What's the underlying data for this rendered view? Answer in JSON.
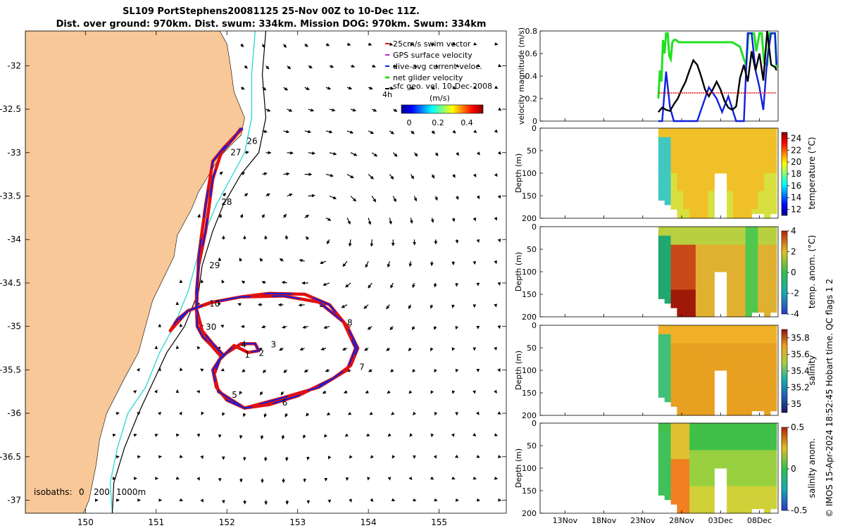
{
  "title_line1": "SL109 PortStephens20081125 25-Nov 00Z to 10-Dec 11Z.",
  "title_line2": "Dist. over ground: 970km. Dist. swum: 334km. Mission DOG: 970km. Swum: 334km",
  "copyright": "© IMOS 15-Apr-2024 18:52:45 Hobart time. QC flags 1  2",
  "colors": {
    "land": "#f9c898",
    "track_red": "#e01010",
    "track_blue": "#1020e0",
    "isobath_200": "#35d8d8",
    "isobath_1000": "#000000",
    "green": "#20e020"
  },
  "chart_data": [
    {
      "type": "map",
      "name": "glider track map",
      "xlim": [
        149.15,
        155.95
      ],
      "ylim": [
        -37.15,
        -31.6
      ],
      "xticks": [
        150,
        151,
        152,
        153,
        154,
        155
      ],
      "xtick_labels": [
        "150",
        "151",
        "152",
        "153",
        "154",
        "155"
      ],
      "yticks": [
        -32,
        -32.5,
        -33,
        -33.5,
        -34,
        -34.5,
        -35,
        -35.5,
        -36,
        -36.5,
        -37
      ],
      "ytick_labels": [
        "-32",
        "-32.5",
        "-33",
        "-33.5",
        "-34",
        "-34.5",
        "-35",
        "-35.5",
        "-36",
        "-36.5",
        "-37"
      ],
      "legend": [
        "25cm/s swim vector",
        "GPS surface velocity",
        "dive-avg current veloc.",
        "net glider velocity",
        "sfc geo. vel. 10-Dec-2008"
      ],
      "colorbar": {
        "label": "(m/s)",
        "ticks": [
          "0",
          "0.2",
          "0.4"
        ],
        "range": [
          0,
          0.5
        ]
      },
      "isobath_label": "isobaths:",
      "isobath_levels": [
        "0",
        "200",
        "1000m"
      ],
      "coastline": [
        [
          150.4,
          -31.6
        ],
        [
          150.9,
          -31.6
        ],
        [
          151.9,
          -31.6
        ],
        [
          152.0,
          -31.75
        ],
        [
          152.05,
          -32.0
        ],
        [
          152.1,
          -32.3
        ],
        [
          152.25,
          -32.6
        ],
        [
          152.2,
          -32.8
        ],
        [
          152.05,
          -32.92
        ],
        [
          151.9,
          -33.05
        ],
        [
          151.75,
          -33.25
        ],
        [
          151.6,
          -33.45
        ],
        [
          151.5,
          -33.65
        ],
        [
          151.3,
          -33.95
        ],
        [
          151.25,
          -34.2
        ],
        [
          151.1,
          -34.45
        ],
        [
          150.95,
          -34.7
        ],
        [
          150.85,
          -35.0
        ],
        [
          150.75,
          -35.3
        ],
        [
          150.55,
          -35.6
        ],
        [
          150.3,
          -36.0
        ],
        [
          150.2,
          -36.3
        ],
        [
          150.15,
          -36.6
        ],
        [
          150.05,
          -37.0
        ],
        [
          149.97,
          -37.15
        ]
      ],
      "isobath_200m": [
        [
          152.4,
          -31.6
        ],
        [
          152.35,
          -32.1
        ],
        [
          152.35,
          -32.6
        ],
        [
          152.25,
          -33.0
        ],
        [
          152.05,
          -33.3
        ],
        [
          151.85,
          -33.6
        ],
        [
          151.7,
          -33.9
        ],
        [
          151.55,
          -34.3
        ],
        [
          151.45,
          -34.6
        ],
        [
          151.25,
          -35.0
        ],
        [
          151.05,
          -35.3
        ],
        [
          150.85,
          -35.7
        ],
        [
          150.6,
          -36.0
        ],
        [
          150.45,
          -36.4
        ],
        [
          150.35,
          -36.8
        ],
        [
          150.38,
          -37.15
        ]
      ],
      "isobath_1000m": [
        [
          152.55,
          -31.6
        ],
        [
          152.5,
          -32.1
        ],
        [
          152.55,
          -32.6
        ],
        [
          152.45,
          -33.0
        ],
        [
          152.2,
          -33.25
        ],
        [
          151.95,
          -33.6
        ],
        [
          151.8,
          -33.9
        ],
        [
          151.65,
          -34.3
        ],
        [
          151.6,
          -34.6
        ],
        [
          151.4,
          -35.0
        ],
        [
          151.15,
          -35.3
        ],
        [
          150.95,
          -35.65
        ],
        [
          150.75,
          -36.0
        ],
        [
          150.55,
          -36.4
        ],
        [
          150.4,
          -36.8
        ],
        [
          150.38,
          -37.15
        ]
      ],
      "track": [
        [
          152.2,
          -32.72
        ],
        [
          152.1,
          -32.83
        ],
        [
          151.92,
          -33.0
        ],
        [
          151.8,
          -33.3
        ],
        [
          151.7,
          -33.9
        ],
        [
          151.6,
          -34.3
        ],
        [
          151.57,
          -34.6
        ],
        [
          151.57,
          -34.8
        ],
        [
          151.58,
          -35.0
        ],
        [
          151.66,
          -35.12
        ],
        [
          151.78,
          -35.22
        ],
        [
          151.92,
          -35.35
        ],
        [
          151.8,
          -35.5
        ],
        [
          151.85,
          -35.7
        ],
        [
          152.0,
          -35.85
        ],
        [
          152.25,
          -35.94
        ],
        [
          152.6,
          -35.9
        ],
        [
          153.0,
          -35.8
        ],
        [
          153.5,
          -35.6
        ],
        [
          153.75,
          -35.45
        ],
        [
          153.85,
          -35.25
        ],
        [
          153.7,
          -35.0
        ],
        [
          153.45,
          -34.75
        ],
        [
          153.1,
          -34.63
        ],
        [
          152.6,
          -34.62
        ],
        [
          152.2,
          -34.66
        ],
        [
          151.8,
          -34.72
        ],
        [
          151.45,
          -34.82
        ],
        [
          151.3,
          -34.92
        ],
        [
          151.2,
          -35.05
        ],
        [
          151.2,
          -35.05
        ],
        [
          151.45,
          -34.82
        ],
        [
          151.75,
          -34.73
        ],
        [
          152.2,
          -34.66
        ],
        [
          152.8,
          -34.65
        ],
        [
          153.3,
          -34.72
        ],
        [
          153.65,
          -34.95
        ],
        [
          153.82,
          -35.25
        ],
        [
          153.7,
          -35.5
        ],
        [
          153.3,
          -35.7
        ],
        [
          152.8,
          -35.82
        ],
        [
          152.25,
          -35.94
        ],
        [
          151.88,
          -35.75
        ],
        [
          151.82,
          -35.55
        ],
        [
          151.9,
          -35.38
        ],
        [
          152.1,
          -35.22
        ],
        [
          152.3,
          -35.3
        ],
        [
          152.45,
          -35.28
        ],
        [
          152.4,
          -35.2
        ],
        [
          152.2,
          -35.2
        ],
        [
          151.95,
          -35.33
        ],
        [
          151.8,
          -35.2
        ],
        [
          151.65,
          -35.05
        ],
        [
          151.57,
          -34.8
        ],
        [
          151.6,
          -34.2
        ],
        [
          151.7,
          -33.6
        ],
        [
          151.8,
          -33.1
        ],
        [
          151.95,
          -32.95
        ],
        [
          152.1,
          -32.82
        ],
        [
          152.22,
          -32.72
        ]
      ],
      "day_labels": [
        {
          "text": "26",
          "lon": 152.28,
          "lat": -32.9
        },
        {
          "text": "27",
          "lon": 152.05,
          "lat": -33.03
        },
        {
          "text": "28",
          "lon": 151.92,
          "lat": -33.6
        },
        {
          "text": "29",
          "lon": 151.75,
          "lat": -34.33
        },
        {
          "text": "10",
          "lon": 151.75,
          "lat": -34.77
        },
        {
          "text": "30",
          "lon": 151.7,
          "lat": -35.04
        },
        {
          "text": "8",
          "lon": 153.7,
          "lat": -34.99
        },
        {
          "text": "7",
          "lon": 153.87,
          "lat": -35.5
        },
        {
          "text": "6",
          "lon": 152.78,
          "lat": -35.91
        },
        {
          "text": "5",
          "lon": 152.07,
          "lat": -35.82
        },
        {
          "text": "4",
          "lon": 152.2,
          "lat": -35.24
        },
        {
          "text": "3",
          "lon": 152.62,
          "lat": -35.24
        },
        {
          "text": "2",
          "lon": 152.45,
          "lat": -35.34
        },
        {
          "text": "1",
          "lon": 152.25,
          "lat": -35.36
        }
      ]
    },
    {
      "type": "line",
      "name": "velocity magnitude",
      "ylabel": "velocity magnitude (m/s)",
      "ylim": [
        0,
        0.8
      ],
      "yticks": [
        0,
        0.2,
        0.4,
        0.6,
        0.8
      ],
      "ytick_labels": [
        "0",
        "0.2",
        "0.4",
        "0.6",
        "0.8"
      ],
      "xlim": [
        9.8,
        40.4
      ],
      "series": [
        {
          "name": "net glider velocity",
          "color": "#20e020",
          "x": [
            25.0,
            25.2,
            25.4,
            25.6,
            25.8,
            26.0,
            26.2,
            26.4,
            26.6,
            26.8,
            27.0,
            27.3,
            27.6,
            28.0,
            29,
            30,
            31,
            32,
            33,
            34,
            34.5,
            35,
            35.5,
            36,
            36.3,
            36.6,
            37,
            37.3,
            37.6,
            38,
            38.3,
            38.6,
            39,
            39.3,
            39.6,
            40,
            40.2
          ],
          "y": [
            0.2,
            0.45,
            0.35,
            0.72,
            0.6,
            0.78,
            0.78,
            0.58,
            0.55,
            0.7,
            0.72,
            0.72,
            0.7,
            0.7,
            0.7,
            0.7,
            0.7,
            0.7,
            0.7,
            0.7,
            0.7,
            0.68,
            0.66,
            0.55,
            0.5,
            0.78,
            0.78,
            0.78,
            0.62,
            0.78,
            0.78,
            0.52,
            0.5,
            0.78,
            0.78,
            0.78,
            0.47
          ]
        },
        {
          "name": "dive-avg current veloc.",
          "color": "#1020e0",
          "x": [
            25.0,
            25.5,
            26.0,
            26.5,
            27.0,
            28.5,
            30.0,
            31.5,
            32.5,
            33.2,
            34.0,
            35.0,
            35.7,
            36.0,
            36.5,
            37.0,
            37.5,
            38.0,
            38.5,
            39.0,
            39.5,
            40.0,
            40.2
          ],
          "y": [
            0.0,
            0.0,
            0.44,
            0.12,
            0.0,
            0.0,
            0.0,
            0.3,
            0.2,
            0.08,
            0.22,
            0.0,
            0.0,
            0.0,
            0.78,
            0.78,
            0.45,
            0.3,
            0.1,
            0.55,
            0.78,
            0.78,
            0.5
          ]
        },
        {
          "name": "sfc geo. vel.",
          "color": "#000000",
          "x": [
            25.0,
            25.5,
            26.0,
            26.5,
            27.0,
            27.5,
            28.0,
            28.5,
            29,
            29.5,
            30,
            30.5,
            31,
            31.5,
            32,
            32.5,
            33,
            33.5,
            34,
            34.5,
            35,
            35.5,
            36,
            36.5,
            37,
            37.5,
            38,
            38.5,
            39,
            39.5,
            40,
            40.2
          ],
          "y": [
            0.08,
            0.12,
            0.1,
            0.09,
            0.15,
            0.2,
            0.28,
            0.35,
            0.45,
            0.54,
            0.5,
            0.4,
            0.28,
            0.22,
            0.28,
            0.35,
            0.28,
            0.18,
            0.12,
            0.1,
            0.13,
            0.38,
            0.5,
            0.35,
            0.62,
            0.45,
            0.6,
            0.36,
            0.8,
            0.5,
            0.48,
            0.45
          ]
        },
        {
          "name": "25cm/s swim vector",
          "color": "#e01010",
          "x": [
            25.0,
            40.2
          ],
          "y": [
            0.25,
            0.25
          ]
        }
      ]
    },
    {
      "type": "heatmap",
      "name": "temperature section",
      "ylabel": "Depth (m)",
      "cbar_label": "temperature (°C)",
      "ylim": [
        0,
        200
      ],
      "yticks": [
        0,
        50,
        100,
        150,
        200
      ],
      "ytick_labels": [
        "0",
        "50",
        "100",
        "150",
        "200"
      ],
      "cbar_range": [
        11,
        25
      ],
      "cbar_ticks": [
        12,
        14,
        16,
        18,
        20,
        22,
        24
      ],
      "cbar_tick_labels": [
        "12",
        "14",
        "16",
        "18",
        "20",
        "22",
        "24"
      ],
      "profile_times": [
        25.0,
        25.8,
        26.6,
        27.4,
        28.2,
        29.0,
        29.8,
        30.6,
        31.4,
        32.2,
        33.0,
        33.8,
        34.6,
        35.4,
        36.2,
        37.0,
        37.8,
        38.6,
        39.4,
        40.2
      ],
      "max_depth": [
        160,
        170,
        180,
        200,
        210,
        200,
        200,
        200,
        210,
        200,
        210,
        210,
        200,
        200,
        200,
        190,
        190,
        200,
        190,
        190
      ],
      "gap": [
        32.5,
        34.0,
        105
      ]
    },
    {
      "type": "heatmap",
      "name": "temperature anomaly section",
      "ylabel": "Depth (m)",
      "cbar_label": "temp. anom. (°C)",
      "ylim": [
        0,
        200
      ],
      "yticks": [
        0,
        50,
        100,
        150,
        200
      ],
      "ytick_labels": [
        "0",
        "50",
        "100",
        "150",
        "200"
      ],
      "cbar_range": [
        -4,
        4
      ],
      "cbar_ticks": [
        -4,
        -2,
        0,
        2,
        4
      ],
      "cbar_tick_labels": [
        "-4",
        "-2",
        "0",
        "2",
        "4"
      ]
    },
    {
      "type": "heatmap",
      "name": "salinity section",
      "ylabel": "Depth (m)",
      "cbar_label": "salinity",
      "ylim": [
        0,
        200
      ],
      "yticks": [
        0,
        50,
        100,
        150,
        200
      ],
      "ytick_labels": [
        "0",
        "50",
        "100",
        "150",
        "200"
      ],
      "cbar_range": [
        34.9,
        35.9
      ],
      "cbar_ticks": [
        35,
        35.2,
        35.4,
        35.6,
        35.8
      ],
      "cbar_tick_labels": [
        "35",
        "35.2",
        "35.4",
        "35.6",
        "35.8"
      ]
    },
    {
      "type": "heatmap",
      "name": "salinity anomaly section",
      "ylabel": "Depth (m)",
      "cbar_label": "salinity anom.",
      "ylim": [
        0,
        200
      ],
      "yticks": [
        0,
        50,
        100,
        150,
        200
      ],
      "ytick_labels": [
        "0",
        "50",
        "100",
        "150",
        "200"
      ],
      "cbar_range": [
        -0.5,
        0.5
      ],
      "cbar_ticks": [
        -0.5,
        0,
        0.5
      ],
      "cbar_tick_labels": [
        "-0.5",
        "0",
        "0.5"
      ],
      "xticks": [
        13,
        18,
        23,
        28,
        33,
        38
      ],
      "xtick_labels": [
        "13Nov",
        "18Nov",
        "23Nov",
        "28Nov",
        "03Dec",
        "08Dec"
      ]
    }
  ]
}
